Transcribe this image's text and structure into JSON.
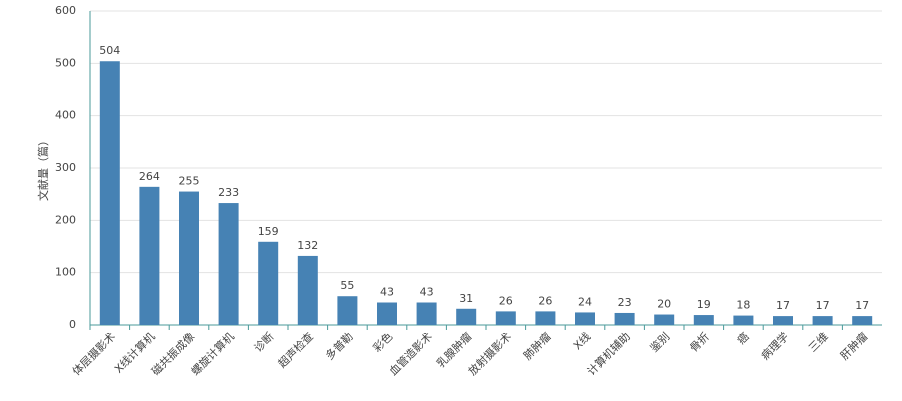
{
  "chart_data": {
    "type": "bar",
    "y_label": "文献量（篇）",
    "categories": [
      "体层摄影术",
      "X线计算机",
      "磁共振成像",
      "螺旋计算机",
      "诊断",
      "超声检查",
      "多普勒",
      "彩色",
      "血管造影术",
      "乳腺肿瘤",
      "放射摄影术",
      "肺肿瘤",
      "X线",
      "计算机辅助",
      "鉴别",
      "骨折",
      "癌",
      "病理学",
      "三维",
      "肝肿瘤"
    ],
    "values": [
      504,
      264,
      255,
      233,
      159,
      132,
      55,
      43,
      43,
      31,
      26,
      26,
      24,
      23,
      20,
      19,
      18,
      17,
      17,
      17
    ],
    "color": "#4682b4",
    "ylim": [
      0,
      600
    ],
    "yticks": [
      0,
      100,
      200,
      300,
      400,
      500,
      600
    ],
    "grid": true
  }
}
